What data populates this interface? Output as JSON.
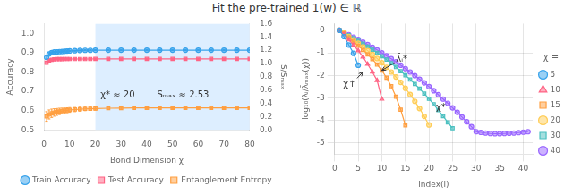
{
  "title": "Fit the pre-trained 1(w) ∈ ℝ",
  "chart_data": [
    {
      "type": "line",
      "xlabel": "Bond Dimension χ",
      "ylabel": "Accuracy",
      "y2label": "S/Sₘₐₓ",
      "x": [
        1,
        2,
        3,
        4,
        5,
        6,
        7,
        8,
        9,
        10,
        12,
        14,
        16,
        18,
        20,
        25,
        30,
        35,
        40,
        45,
        50,
        55,
        60,
        65,
        70,
        75,
        80
      ],
      "series": [
        {
          "name": "Train Accuracy",
          "marker": "circle",
          "values": [
            0.875,
            0.893,
            0.9,
            0.903,
            0.904,
            0.905,
            0.906,
            0.907,
            0.908,
            0.909,
            0.91,
            0.911,
            0.912,
            0.912,
            0.913,
            0.913,
            0.913,
            0.913,
            0.913,
            0.913,
            0.913,
            0.913,
            0.913,
            0.913,
            0.913,
            0.913,
            0.913
          ],
          "errors": [
            0.008,
            0.006,
            0.005,
            0.004,
            0.004,
            0.003,
            0.003,
            0.003,
            0.003,
            0.003,
            0.003,
            0.003,
            0.003,
            0.003,
            0.003,
            0.003,
            0.003,
            0.003,
            0.003,
            0.003,
            0.003,
            0.003,
            0.003,
            0.003,
            0.003,
            0.003,
            0.003
          ]
        },
        {
          "name": "Test Accuracy",
          "marker": "square",
          "values": [
            0.848,
            0.86,
            0.863,
            0.865,
            0.866,
            0.866,
            0.866,
            0.867,
            0.867,
            0.867,
            0.867,
            0.867,
            0.867,
            0.867,
            0.868,
            0.868,
            0.868,
            0.868,
            0.868,
            0.868,
            0.868,
            0.868,
            0.868,
            0.868,
            0.868,
            0.868,
            0.868
          ],
          "errors": [
            0.007,
            0.005,
            0.004,
            0.004,
            0.003,
            0.003,
            0.003,
            0.003,
            0.003,
            0.003,
            0.003,
            0.003,
            0.003,
            0.003,
            0.003,
            0.003,
            0.003,
            0.003,
            0.003,
            0.003,
            0.003,
            0.003,
            0.003,
            0.003,
            0.003,
            0.003,
            0.003
          ]
        },
        {
          "name": "Entanglement Entropy",
          "marker": "square",
          "axis": "y2",
          "values": [
            0.204,
            0.234,
            0.252,
            0.264,
            0.272,
            0.28,
            0.286,
            0.292,
            0.297,
            0.302,
            0.308,
            0.314,
            0.318,
            0.32,
            0.323,
            0.328,
            0.33,
            0.332,
            0.333,
            0.334,
            0.334,
            0.334,
            0.333,
            0.333,
            0.333,
            0.332,
            0.333
          ],
          "errors": [
            0.072,
            0.068,
            0.063,
            0.056,
            0.052,
            0.048,
            0.044,
            0.04,
            0.038,
            0.036,
            0.032,
            0.03,
            0.027,
            0.025,
            0.023,
            0.019,
            0.017,
            0.015,
            0.014,
            0.013,
            0.012,
            0.012,
            0.011,
            0.011,
            0.01,
            0.01,
            0.01
          ]
        }
      ],
      "xlim": [
        0,
        80
      ],
      "xticks": [
        0,
        10,
        20,
        30,
        40,
        50,
        60,
        70,
        80
      ],
      "ylim": [
        0.5,
        1.05
      ],
      "yticks": [
        0.5,
        0.6,
        0.7,
        0.8,
        0.9,
        {
          "value": 1.0,
          "label": "1.0"
        }
      ],
      "y2lim": [
        0.0,
        1.6
      ],
      "y2ticks": [
        {
          "value": 0.0,
          "label": "0.0"
        },
        0.2,
        0.4,
        0.6,
        0.8,
        {
          "value": 1.0,
          "label": "1.0"
        },
        1.2,
        1.4,
        1.6
      ],
      "bands": [
        {
          "x": [
            20,
            80
          ],
          "color": "#ddeeff"
        }
      ],
      "annotations": [
        {
          "text": "χ* ≈ 20",
          "x": 22,
          "y": 0.67
        },
        {
          "text": "Sₘₐₓ ≈ 2.53",
          "x": 44,
          "y": 0.67
        }
      ],
      "grid": false,
      "legend": "bottom"
    },
    {
      "type": "line",
      "xlabel": "index(i)",
      "ylabel": "log₁₀(λᵢ/λ̄ₘₐₓ(χ))",
      "series": [
        {
          "name": "5",
          "marker": "circle",
          "x": [
            1,
            2,
            3,
            4,
            5
          ],
          "values": [
            0.0,
            -0.28,
            -0.65,
            -1.02,
            -1.55
          ]
        },
        {
          "name": "10",
          "marker": "triangle",
          "x": [
            1,
            2,
            3,
            4,
            5,
            6,
            7,
            8,
            9,
            10
          ],
          "values": [
            0.0,
            -0.18,
            -0.42,
            -0.65,
            -0.9,
            -1.18,
            -1.5,
            -1.85,
            -2.22,
            -3.05
          ]
        },
        {
          "name": "15",
          "marker": "square",
          "x": [
            1,
            2,
            3,
            4,
            5,
            6,
            7,
            8,
            9,
            10,
            11,
            12,
            13,
            14,
            15
          ],
          "values": [
            0.0,
            -0.14,
            -0.32,
            -0.5,
            -0.68,
            -0.87,
            -1.07,
            -1.28,
            -1.52,
            -1.78,
            -2.1,
            -2.48,
            -2.95,
            -3.52,
            -4.22
          ]
        },
        {
          "name": "20",
          "marker": "circle",
          "x": [
            1,
            2,
            3,
            4,
            5,
            6,
            7,
            8,
            9,
            10,
            11,
            12,
            13,
            14,
            15,
            16,
            17,
            18,
            19,
            20
          ],
          "values": [
            0.0,
            -0.12,
            -0.27,
            -0.42,
            -0.57,
            -0.73,
            -0.9,
            -1.07,
            -1.25,
            -1.44,
            -1.64,
            -1.85,
            -2.07,
            -2.31,
            -2.57,
            -2.85,
            -3.15,
            -3.47,
            -3.82,
            -4.2
          ]
        },
        {
          "name": "30",
          "marker": "square",
          "x": [
            1,
            2,
            3,
            4,
            5,
            6,
            7,
            8,
            9,
            10,
            11,
            12,
            13,
            14,
            15,
            16,
            17,
            18,
            19,
            20,
            21,
            22,
            23,
            24,
            25
          ],
          "values": [
            0.0,
            -0.1,
            -0.22,
            -0.34,
            -0.46,
            -0.59,
            -0.72,
            -0.86,
            -1.0,
            -1.15,
            -1.3,
            -1.46,
            -1.63,
            -1.81,
            -1.99,
            -2.18,
            -2.38,
            -2.59,
            -2.81,
            -3.04,
            -3.28,
            -3.54,
            -3.81,
            -4.09,
            -4.35
          ]
        },
        {
          "name": "40",
          "marker": "circle",
          "x": [
            1,
            2,
            3,
            4,
            5,
            6,
            7,
            8,
            9,
            10,
            11,
            12,
            13,
            14,
            15,
            16,
            17,
            18,
            19,
            20,
            21,
            22,
            23,
            24,
            25,
            26,
            27,
            28,
            29,
            30,
            31,
            32,
            33,
            34,
            35,
            36,
            37,
            38,
            39,
            40,
            41
          ],
          "values": [
            0.0,
            -0.09,
            -0.19,
            -0.3,
            -0.4,
            -0.52,
            -0.63,
            -0.75,
            -0.87,
            -1.0,
            -1.13,
            -1.26,
            -1.4,
            -1.55,
            -1.7,
            -1.85,
            -2.01,
            -2.17,
            -2.33,
            -2.5,
            -2.68,
            -2.86,
            -3.05,
            -3.24,
            -3.44,
            -3.64,
            -3.85,
            -4.06,
            -4.28,
            -4.5,
            -4.53,
            -4.56,
            -4.58,
            -4.59,
            -4.59,
            -4.58,
            -4.57,
            -4.56,
            -4.54,
            -4.52,
            -4.5
          ]
        }
      ],
      "xlim": [
        0,
        42
      ],
      "xticks": [
        0,
        5,
        10,
        15,
        20,
        25,
        30,
        35,
        40
      ],
      "ylim": [
        -5.5,
        0.3
      ],
      "yticks": [
        0,
        -1,
        -2,
        -3,
        -4,
        -5
      ],
      "annotations": [
        {
          "text": "λ̄ᵢ*",
          "x": 13,
          "y": -1.4,
          "arrow_to": [
            10,
            -1.78
          ]
        },
        {
          "text": "χ↑",
          "x": 4.5,
          "y": -2.5,
          "arrow_to": [
            6,
            -1.85
          ]
        },
        {
          "text": "χ*",
          "x": 21.5,
          "y": -3.55
        }
      ],
      "grid": true,
      "legend": "right",
      "legend_title": "χ ="
    }
  ]
}
